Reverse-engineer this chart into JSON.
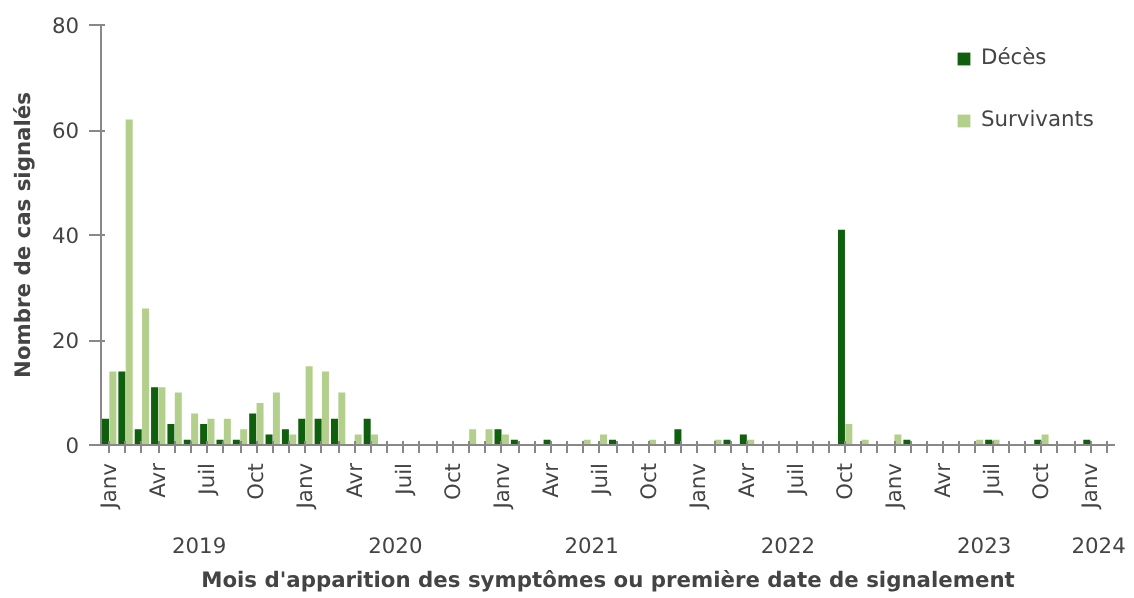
{
  "chart_data": {
    "type": "bar",
    "categories": [
      "Janv",
      null,
      null,
      "Avr",
      null,
      null,
      "Juil",
      null,
      null,
      "Oct",
      null,
      null,
      "Janv",
      null,
      null,
      "Avr",
      null,
      null,
      "Juil",
      null,
      null,
      "Oct",
      null,
      null,
      "Janv",
      null,
      null,
      "Avr",
      null,
      null,
      "Juil",
      null,
      null,
      "Oct",
      null,
      null,
      "Janv",
      null,
      null,
      "Avr",
      null,
      null,
      "Juil",
      null,
      null,
      "Oct",
      null,
      null,
      "Janv",
      null,
      null,
      "Avr",
      null,
      null,
      "Juil",
      null,
      null,
      "Oct",
      null,
      null,
      "Janv",
      null
    ],
    "series": [
      {
        "name": "Décès",
        "color": "#0f5f0f",
        "values": [
          5,
          14,
          3,
          11,
          4,
          1,
          4,
          1,
          1,
          6,
          2,
          3,
          5,
          5,
          5,
          0,
          5,
          0,
          0,
          0,
          0,
          0,
          0,
          0,
          3,
          1,
          0,
          1,
          0,
          0,
          0,
          1,
          0,
          0,
          0,
          3,
          0,
          0,
          1,
          2,
          0,
          0,
          0,
          0,
          0,
          41,
          0,
          0,
          0,
          1,
          0,
          0,
          0,
          0,
          1,
          0,
          0,
          1,
          0,
          0,
          1,
          0
        ]
      },
      {
        "name": "Survivants",
        "color": "#b3cf8c",
        "values": [
          14,
          62,
          26,
          11,
          10,
          6,
          5,
          5,
          3,
          8,
          10,
          2,
          15,
          14,
          10,
          2,
          2,
          0,
          0,
          0,
          0,
          0,
          3,
          3,
          2,
          0,
          0,
          0,
          0,
          1,
          2,
          0,
          0,
          1,
          0,
          0,
          0,
          1,
          0,
          1,
          0,
          0,
          0,
          0,
          0,
          4,
          1,
          0,
          2,
          0,
          0,
          0,
          0,
          1,
          1,
          0,
          0,
          2,
          0,
          0,
          0,
          0
        ]
      }
    ],
    "annotations": [
      "2019",
      "2020",
      "2021",
      "2022",
      "2023",
      "2024"
    ],
    "xlabel": "Mois d'apparition des symptômes ou première date de signalement",
    "ylabel": "Nombre de cas signalés",
    "ylim": [
      0,
      80
    ],
    "yticks": [
      0,
      20,
      40,
      60,
      80
    ],
    "grid": false,
    "legend": "top right"
  }
}
